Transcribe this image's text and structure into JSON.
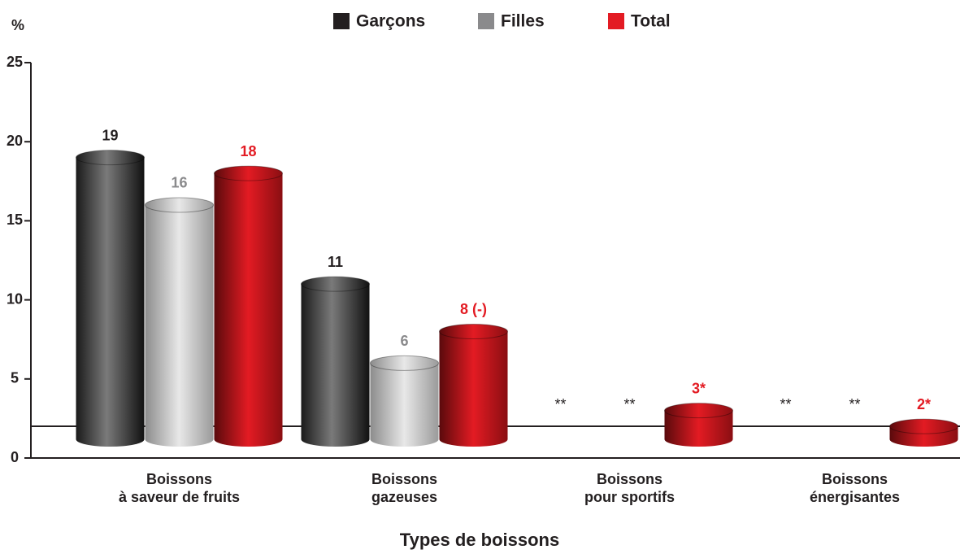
{
  "chart_data": {
    "type": "bar",
    "y_label": "%",
    "x_label": "Types de boissons",
    "categories": [
      [
        "Boissons",
        "à saveur de fruits"
      ],
      [
        "Boissons",
        "gazeuses"
      ],
      [
        "Boissons",
        "pour sportifs"
      ],
      [
        "Boissons",
        "énergisantes"
      ]
    ],
    "series": [
      {
        "name": "Garçons",
        "color": "#231f20",
        "values": [
          19,
          11,
          null,
          null
        ],
        "value_labels": [
          "19",
          "11",
          "**",
          "**"
        ]
      },
      {
        "name": "Filles",
        "color": "#8a8a8c",
        "values": [
          16,
          6,
          null,
          null
        ],
        "value_labels": [
          "16",
          "6",
          "**",
          "**"
        ]
      },
      {
        "name": "Total",
        "color": "#e31b23",
        "values": [
          18,
          8,
          3,
          2
        ],
        "value_labels": [
          "18",
          "8 (-)",
          "3*",
          "2*"
        ]
      }
    ],
    "ylim": [
      0,
      25
    ],
    "yticks": [
      0,
      5,
      10,
      15,
      20,
      25
    ],
    "legend": "top"
  }
}
